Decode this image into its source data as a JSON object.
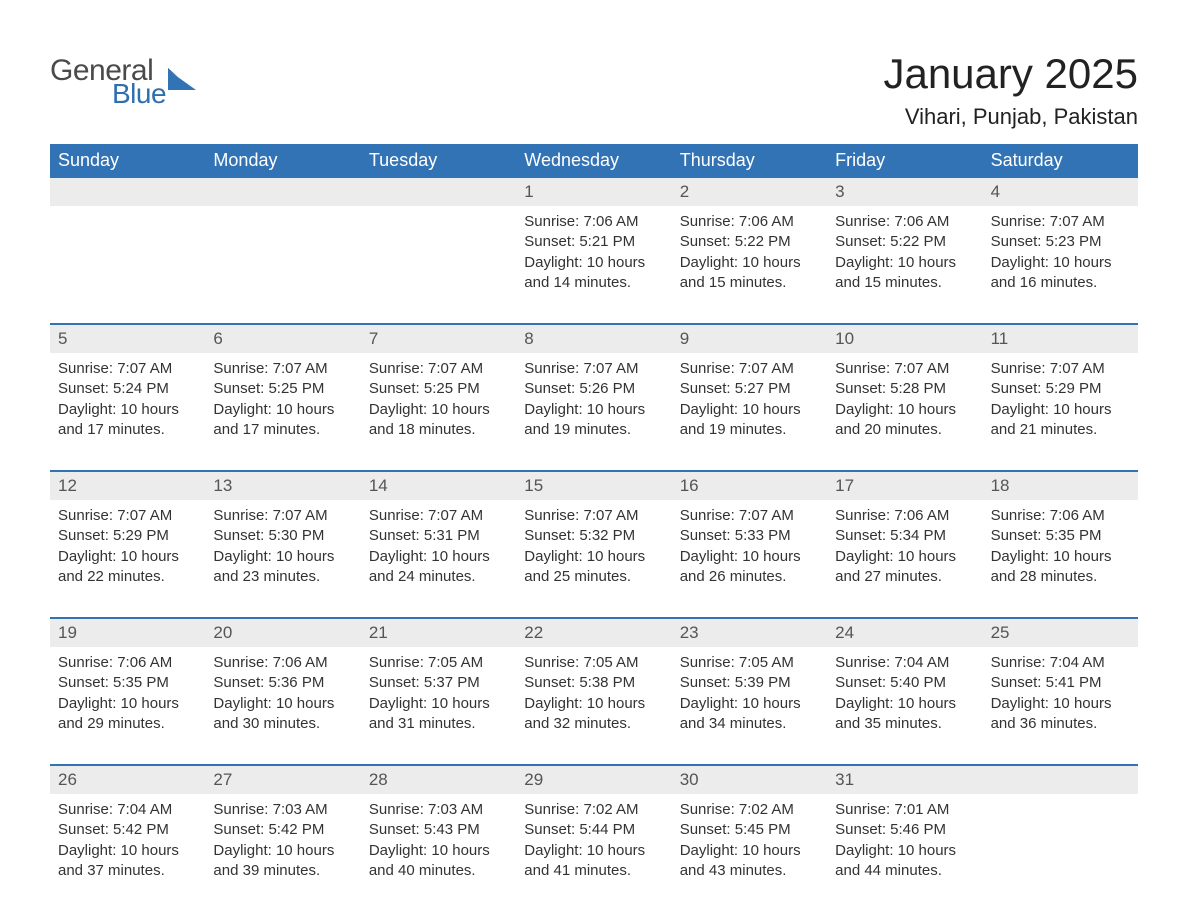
{
  "logo": {
    "word1": "General",
    "word2": "Blue",
    "text_color": "#4a4a4a",
    "accent_color": "#2f6fae"
  },
  "title": "January 2025",
  "location": "Vihari, Punjab, Pakistan",
  "styling": {
    "header_bg": "#3273b6",
    "header_text": "#ffffff",
    "daynum_bg": "#ececec",
    "daynum_text": "#555555",
    "detail_text": "#333333",
    "week_border_color": "#3273b6",
    "body_bg": "#ffffff",
    "title_fontsize": 42,
    "location_fontsize": 22,
    "weekday_fontsize": 18,
    "daynum_fontsize": 17,
    "detail_fontsize": 15
  },
  "weekdays": [
    "Sunday",
    "Monday",
    "Tuesday",
    "Wednesday",
    "Thursday",
    "Friday",
    "Saturday"
  ],
  "weeks": [
    [
      null,
      null,
      null,
      {
        "day": 1,
        "sunrise": "7:06 AM",
        "sunset": "5:21 PM",
        "daylight": "10 hours and 14 minutes."
      },
      {
        "day": 2,
        "sunrise": "7:06 AM",
        "sunset": "5:22 PM",
        "daylight": "10 hours and 15 minutes."
      },
      {
        "day": 3,
        "sunrise": "7:06 AM",
        "sunset": "5:22 PM",
        "daylight": "10 hours and 15 minutes."
      },
      {
        "day": 4,
        "sunrise": "7:07 AM",
        "sunset": "5:23 PM",
        "daylight": "10 hours and 16 minutes."
      }
    ],
    [
      {
        "day": 5,
        "sunrise": "7:07 AM",
        "sunset": "5:24 PM",
        "daylight": "10 hours and 17 minutes."
      },
      {
        "day": 6,
        "sunrise": "7:07 AM",
        "sunset": "5:25 PM",
        "daylight": "10 hours and 17 minutes."
      },
      {
        "day": 7,
        "sunrise": "7:07 AM",
        "sunset": "5:25 PM",
        "daylight": "10 hours and 18 minutes."
      },
      {
        "day": 8,
        "sunrise": "7:07 AM",
        "sunset": "5:26 PM",
        "daylight": "10 hours and 19 minutes."
      },
      {
        "day": 9,
        "sunrise": "7:07 AM",
        "sunset": "5:27 PM",
        "daylight": "10 hours and 19 minutes."
      },
      {
        "day": 10,
        "sunrise": "7:07 AM",
        "sunset": "5:28 PM",
        "daylight": "10 hours and 20 minutes."
      },
      {
        "day": 11,
        "sunrise": "7:07 AM",
        "sunset": "5:29 PM",
        "daylight": "10 hours and 21 minutes."
      }
    ],
    [
      {
        "day": 12,
        "sunrise": "7:07 AM",
        "sunset": "5:29 PM",
        "daylight": "10 hours and 22 minutes."
      },
      {
        "day": 13,
        "sunrise": "7:07 AM",
        "sunset": "5:30 PM",
        "daylight": "10 hours and 23 minutes."
      },
      {
        "day": 14,
        "sunrise": "7:07 AM",
        "sunset": "5:31 PM",
        "daylight": "10 hours and 24 minutes."
      },
      {
        "day": 15,
        "sunrise": "7:07 AM",
        "sunset": "5:32 PM",
        "daylight": "10 hours and 25 minutes."
      },
      {
        "day": 16,
        "sunrise": "7:07 AM",
        "sunset": "5:33 PM",
        "daylight": "10 hours and 26 minutes."
      },
      {
        "day": 17,
        "sunrise": "7:06 AM",
        "sunset": "5:34 PM",
        "daylight": "10 hours and 27 minutes."
      },
      {
        "day": 18,
        "sunrise": "7:06 AM",
        "sunset": "5:35 PM",
        "daylight": "10 hours and 28 minutes."
      }
    ],
    [
      {
        "day": 19,
        "sunrise": "7:06 AM",
        "sunset": "5:35 PM",
        "daylight": "10 hours and 29 minutes."
      },
      {
        "day": 20,
        "sunrise": "7:06 AM",
        "sunset": "5:36 PM",
        "daylight": "10 hours and 30 minutes."
      },
      {
        "day": 21,
        "sunrise": "7:05 AM",
        "sunset": "5:37 PM",
        "daylight": "10 hours and 31 minutes."
      },
      {
        "day": 22,
        "sunrise": "7:05 AM",
        "sunset": "5:38 PM",
        "daylight": "10 hours and 32 minutes."
      },
      {
        "day": 23,
        "sunrise": "7:05 AM",
        "sunset": "5:39 PM",
        "daylight": "10 hours and 34 minutes."
      },
      {
        "day": 24,
        "sunrise": "7:04 AM",
        "sunset": "5:40 PM",
        "daylight": "10 hours and 35 minutes."
      },
      {
        "day": 25,
        "sunrise": "7:04 AM",
        "sunset": "5:41 PM",
        "daylight": "10 hours and 36 minutes."
      }
    ],
    [
      {
        "day": 26,
        "sunrise": "7:04 AM",
        "sunset": "5:42 PM",
        "daylight": "10 hours and 37 minutes."
      },
      {
        "day": 27,
        "sunrise": "7:03 AM",
        "sunset": "5:42 PM",
        "daylight": "10 hours and 39 minutes."
      },
      {
        "day": 28,
        "sunrise": "7:03 AM",
        "sunset": "5:43 PM",
        "daylight": "10 hours and 40 minutes."
      },
      {
        "day": 29,
        "sunrise": "7:02 AM",
        "sunset": "5:44 PM",
        "daylight": "10 hours and 41 minutes."
      },
      {
        "day": 30,
        "sunrise": "7:02 AM",
        "sunset": "5:45 PM",
        "daylight": "10 hours and 43 minutes."
      },
      {
        "day": 31,
        "sunrise": "7:01 AM",
        "sunset": "5:46 PM",
        "daylight": "10 hours and 44 minutes."
      },
      null
    ]
  ],
  "labels": {
    "sunrise": "Sunrise: ",
    "sunset": "Sunset: ",
    "daylight": "Daylight: "
  }
}
